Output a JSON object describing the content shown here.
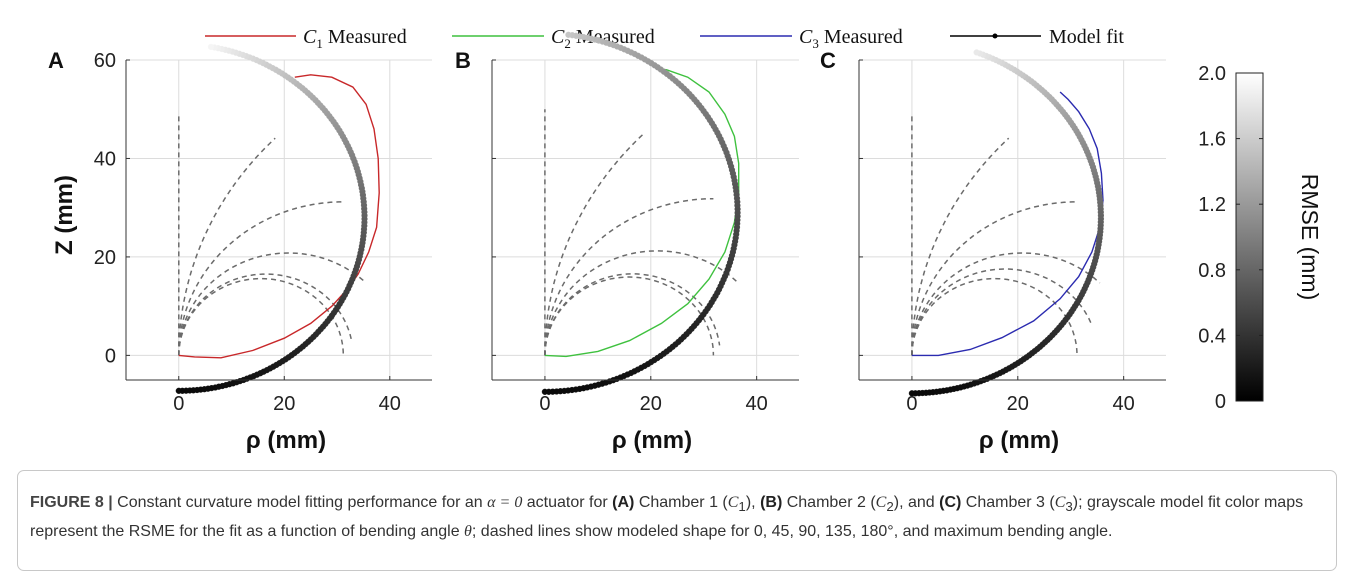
{
  "legend": [
    {
      "symbol": "C",
      "sub": "1",
      "text": "Measured",
      "color": "#c8282a"
    },
    {
      "symbol": "C",
      "sub": "2",
      "text": "Measured",
      "color": "#3fc13f"
    },
    {
      "symbol": "C",
      "sub": "3",
      "text": "Measured",
      "color": "#2b2bb0"
    },
    {
      "symbol": "",
      "sub": "",
      "text": "Model fit",
      "color": "#000000"
    }
  ],
  "colorbar": {
    "label": "RMSE (mm)",
    "ticks": [
      "2.0",
      "1.6",
      "1.2",
      "0.8",
      "0.4",
      "0"
    ],
    "range": [
      0,
      2.0
    ]
  },
  "chart_data": [
    {
      "type": "line",
      "panel": "A",
      "xlabel": "ρ (mm)",
      "ylabel": "Z (mm)",
      "xlim": [
        -10,
        48
      ],
      "ylim": [
        -5,
        60
      ],
      "xticks": [
        "0",
        "20",
        "40"
      ],
      "yticks": [
        "0",
        "20",
        "40",
        "60"
      ],
      "grid": true,
      "measured_color": "#c8282a",
      "series": [
        {
          "name": "C1 Measured",
          "x": [
            0,
            3,
            8,
            14,
            20,
            25,
            29,
            32,
            34,
            36,
            37.5,
            38,
            37.8,
            37,
            35.5,
            33,
            29,
            25,
            22
          ],
          "y": [
            0,
            -0.3,
            -0.5,
            1,
            3.5,
            6.5,
            10,
            13.5,
            16.5,
            21,
            26,
            33,
            40,
            46,
            51,
            54.5,
            56.5,
            57,
            56.5
          ]
        },
        {
          "name": "Model fit",
          "center": [
            0,
            28
          ],
          "radius": 35.2,
          "theta_max_deg": 170,
          "rmse_range": [
            0,
            2.0
          ]
        }
      ],
      "dashed_bending_angles_deg": [
        0,
        45,
        90,
        135,
        180,
        170
      ],
      "dashed_length": 49
    },
    {
      "type": "line",
      "panel": "B",
      "xlabel": "ρ (mm)",
      "ylabel": "",
      "xlim": [
        -10,
        48
      ],
      "ylim": [
        -5,
        60
      ],
      "xticks": [
        "0",
        "20",
        "40"
      ],
      "yticks": [],
      "grid": true,
      "measured_color": "#3fc13f",
      "series": [
        {
          "name": "C2 Measured",
          "x": [
            0,
            4,
            10,
            16,
            22,
            27,
            31,
            34,
            35.8,
            36.6,
            36.6,
            35.8,
            34,
            31,
            27,
            23,
            21
          ],
          "y": [
            0,
            -0.2,
            0.8,
            3,
            6.5,
            10.5,
            15.5,
            21,
            27,
            33,
            39,
            44.5,
            49,
            53.5,
            56.5,
            58,
            58.3
          ]
        },
        {
          "name": "Model fit",
          "center": [
            0,
            29
          ],
          "radius": 36.4,
          "theta_max_deg": 173,
          "rmse_range": [
            0,
            1.6
          ]
        }
      ],
      "dashed_bending_angles_deg": [
        0,
        45,
        90,
        135,
        180,
        173
      ],
      "dashed_length": 50
    },
    {
      "type": "line",
      "panel": "C",
      "xlabel": "ρ (mm)",
      "ylabel": "",
      "xlim": [
        -10,
        48
      ],
      "ylim": [
        -5,
        60
      ],
      "xticks": [
        "0",
        "20",
        "40"
      ],
      "yticks": [],
      "grid": true,
      "measured_color": "#2b2bb0",
      "series": [
        {
          "name": "C3 Measured",
          "x": [
            0,
            5,
            11,
            17,
            23,
            28,
            31.5,
            34,
            35.5,
            36.1,
            35.8,
            35,
            33.5,
            31.5,
            29.5,
            28
          ],
          "y": [
            0,
            0,
            1.2,
            3.6,
            7,
            11.5,
            16,
            21,
            26,
            31.5,
            37,
            42,
            46,
            49.5,
            52,
            53.5
          ]
        },
        {
          "name": "Model fit",
          "center": [
            0,
            28
          ],
          "radius": 35.7,
          "theta_max_deg": 160,
          "rmse_range": [
            0,
            1.9
          ]
        }
      ],
      "dashed_bending_angles_deg": [
        0,
        45,
        90,
        135,
        180,
        160
      ],
      "dashed_length": 49
    }
  ],
  "caption": {
    "label": "FIGURE 8 |",
    "t1": " Constant curvature model fitting performance for an ",
    "alpha": "α = 0",
    "t2": "  actuator for ",
    "a": "(A)",
    "t3": " Chamber 1 (",
    "c1": "C",
    "s1": "1",
    "t4": "), ",
    "b": "(B)",
    "t5": " Chamber 2 (",
    "c2": "C",
    "s2": "2",
    "t6": "), and ",
    "c": "(C)",
    "t7": " Chamber 3 (",
    "c3": "C",
    "s3": "3",
    "t8": "); grayscale model fit color maps represent the RSME for the fit as a function of bending angle ",
    "theta": "θ",
    "t9": "; dashed lines show modeled shape for 0, 45, 90, 135, 180°, and maximum bending angle."
  }
}
